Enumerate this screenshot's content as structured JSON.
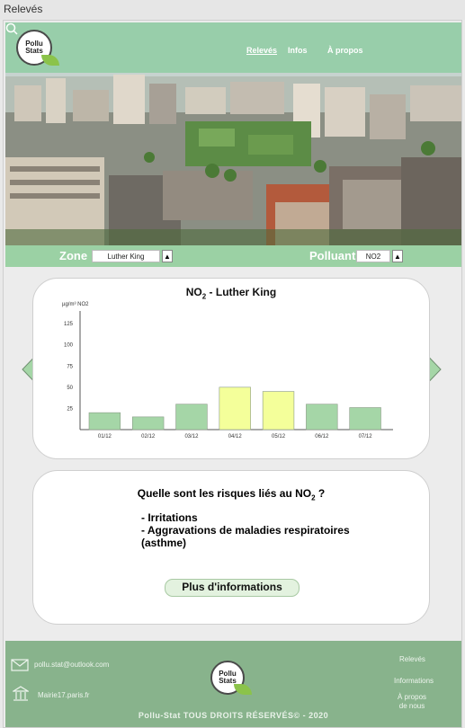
{
  "window": {
    "title": "Relevés"
  },
  "header": {
    "logo_line1": "Pollu",
    "logo_line2": "Stats",
    "nav": [
      "Relevés",
      "Infos",
      "À propos"
    ],
    "active_nav": "Relevés"
  },
  "filters": {
    "zone_label": "Zone",
    "zone_value": "Luther King",
    "pollutant_label": "Polluant",
    "pollutant_value": "NO2"
  },
  "chart_data": {
    "type": "bar",
    "title_main": "NO",
    "title_sub": "2",
    "title_rest": " - Luther King",
    "ylabel": "µg/m³ NO2",
    "ylim": [
      0,
      140
    ],
    "yticks": [
      25,
      50,
      75,
      100,
      125
    ],
    "categories": [
      "01/12",
      "02/12",
      "03/12",
      "04/12",
      "05/12",
      "06/12",
      "07/12"
    ],
    "values": [
      20,
      15,
      30,
      50,
      45,
      30,
      26
    ],
    "colors": [
      "#a5d6a7",
      "#a5d6a7",
      "#a5d6a7",
      "#f4ff9a",
      "#f4ff9a",
      "#a5d6a7",
      "#a5d6a7"
    ]
  },
  "info": {
    "question_prefix": "Quelle sont les risques liés au NO",
    "question_sub": "2",
    "question_suffix": " ?",
    "risks": [
      "- Irritations",
      "- Aggravations de maladies respiratoires (asthme)"
    ],
    "more_button": "Plus d'informations"
  },
  "footer": {
    "email": "pollu.stat@outlook.com",
    "website": "Mairie17.paris.fr",
    "links": [
      "Relevés",
      "Informations",
      "À propos\nde nous"
    ],
    "copyright": "Pollu-Stat TOUS DROITS RÉSERVÉS© - 2020"
  },
  "colors": {
    "accent": "#88b38c",
    "navbar": "#8ccda0",
    "highlight": "#f4ff9a"
  }
}
